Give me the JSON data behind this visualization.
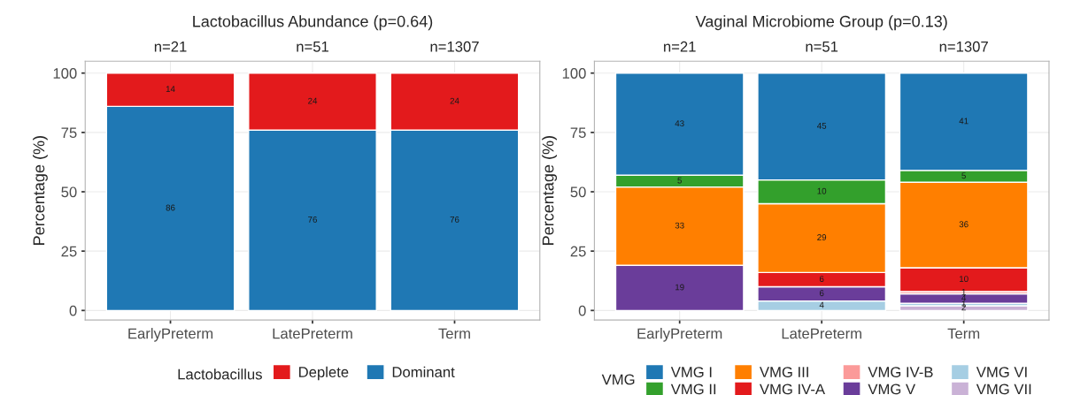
{
  "chart_data": [
    {
      "type": "bar",
      "title": "Lactobacillus Abundance (p=0.64)",
      "ylabel": "Percentage (%)",
      "legend_title": "Lactobacillus",
      "categories": [
        "EarlyPreterm",
        "LatePreterm",
        "Term"
      ],
      "stacked": true,
      "data_labels": true,
      "ylim": [
        -4,
        105
      ],
      "yticks": [
        0,
        25,
        50,
        75,
        100
      ],
      "grid": true,
      "legend": "bottom",
      "annotations": [
        "n=21",
        "n=51",
        "n=1307"
      ],
      "series": [
        {
          "name": "Dominant",
          "color": "#1f78b4",
          "values": [
            86,
            76,
            76
          ]
        },
        {
          "name": "Deplete",
          "color": "#e31a1c",
          "values": [
            14,
            24,
            24
          ]
        }
      ]
    },
    {
      "type": "bar",
      "title": "Vaginal Microbiome Group (p=0.13)",
      "ylabel": "Percentage (%)",
      "legend_title": "VMG",
      "categories": [
        "EarlyPreterm",
        "LatePreterm",
        "Term"
      ],
      "stacked": true,
      "data_labels": true,
      "ylim": [
        -4,
        105
      ],
      "yticks": [
        0,
        25,
        50,
        75,
        100
      ],
      "grid": true,
      "legend": "bottom",
      "annotations": [
        "n=21",
        "n=51",
        "n=1307"
      ],
      "series": [
        {
          "name": "VMG VII",
          "color": "#cab2d6",
          "values": [
            null,
            null,
            2
          ]
        },
        {
          "name": "VMG VI",
          "color": "#a6cee3",
          "values": [
            null,
            4,
            1
          ]
        },
        {
          "name": "VMG V",
          "color": "#6a3d9a",
          "values": [
            19,
            6,
            4
          ]
        },
        {
          "name": "VMG IV-B",
          "color": "#fb9a99",
          "values": [
            null,
            null,
            1
          ]
        },
        {
          "name": "VMG IV-A",
          "color": "#e31a1c",
          "values": [
            null,
            6,
            10
          ]
        },
        {
          "name": "VMG III",
          "color": "#ff7f00",
          "values": [
            33,
            29,
            36
          ]
        },
        {
          "name": "VMG II",
          "color": "#33a02c",
          "values": [
            5,
            10,
            5
          ]
        },
        {
          "name": "VMG I",
          "color": "#1f78b4",
          "values": [
            43,
            45,
            41
          ]
        }
      ]
    }
  ]
}
